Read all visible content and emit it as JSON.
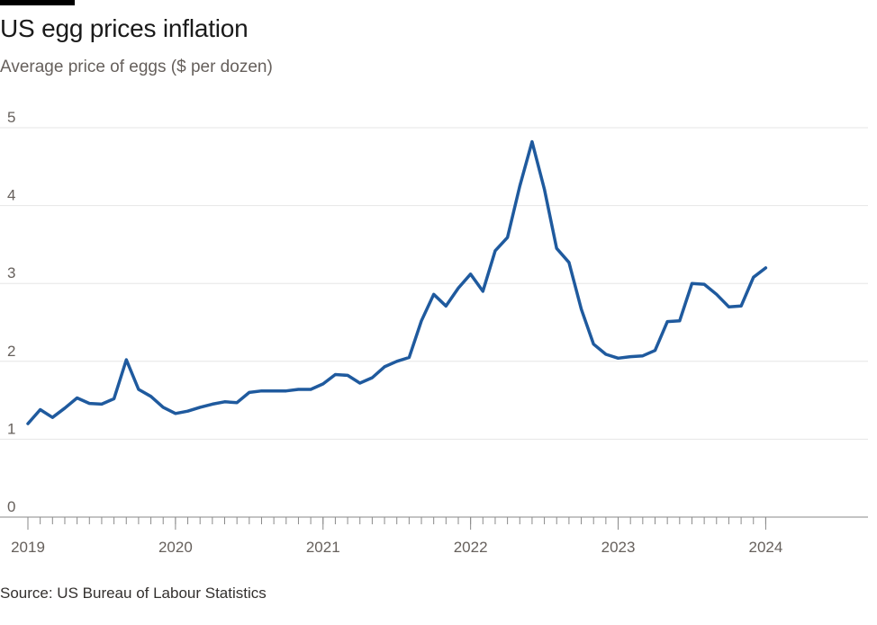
{
  "title": "US egg prices inflation",
  "subtitle": "Average price of eggs ($ per dozen)",
  "source": "Source: US Bureau of Labour Statistics",
  "colors": {
    "line": "#1f5a9e",
    "grid": "#e6e6e6",
    "axis": "#8a8a8a",
    "tick_text": "#66605c"
  },
  "chart_data": {
    "type": "line",
    "title": "US egg prices inflation",
    "subtitle": "Average price of eggs ($ per dozen)",
    "xlabel": "",
    "ylabel": "Average price of eggs ($ per dozen)",
    "ylim": [
      0,
      5
    ],
    "yticks": [
      0,
      1,
      2,
      3,
      4,
      5
    ],
    "xlim": [
      2019.0,
      2024.5833
    ],
    "xticks": [
      {
        "value": 2019.0,
        "label": "2019"
      },
      {
        "value": 2020.0,
        "label": "2020"
      },
      {
        "value": 2021.0,
        "label": "2021"
      },
      {
        "value": 2022.0,
        "label": "2022"
      },
      {
        "value": 2023.0,
        "label": "2023"
      },
      {
        "value": 2024.0,
        "label": "2024"
      }
    ],
    "grid": true,
    "series": [
      {
        "name": "Average price of eggs",
        "start": "2019-01",
        "frequency": "monthly",
        "values": [
          1.2,
          1.38,
          1.28,
          1.4,
          1.53,
          1.46,
          1.45,
          1.52,
          2.02,
          1.64,
          1.55,
          1.41,
          1.33,
          1.36,
          1.41,
          1.45,
          1.48,
          1.47,
          1.6,
          1.62,
          1.62,
          1.62,
          1.64,
          1.64,
          1.71,
          1.83,
          1.82,
          1.72,
          1.79,
          1.93,
          2.0,
          2.05,
          2.52,
          2.86,
          2.71,
          2.94,
          3.12,
          2.9,
          3.42,
          3.59,
          4.25,
          4.82,
          4.21,
          3.45,
          3.27,
          2.67,
          2.22,
          2.09,
          2.04,
          2.06,
          2.07,
          2.14,
          2.51,
          2.52,
          3.0,
          2.99,
          2.86,
          2.7,
          2.71,
          3.08,
          3.2
        ]
      }
    ]
  }
}
